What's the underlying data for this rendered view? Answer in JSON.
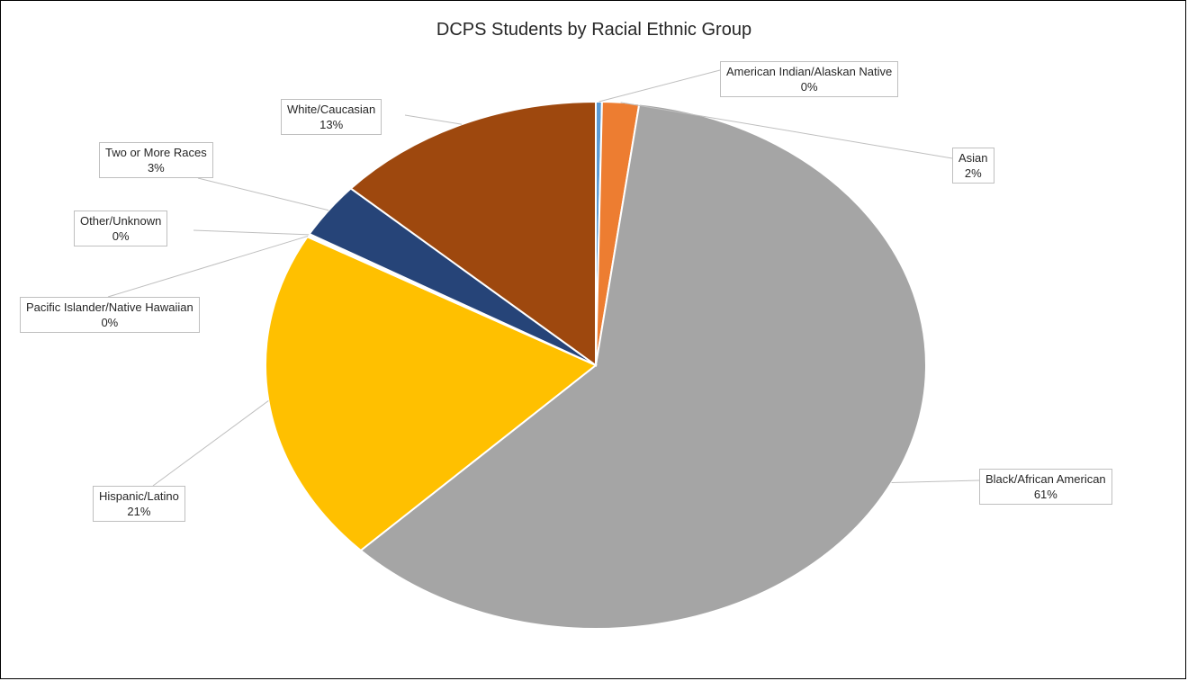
{
  "chart_data": {
    "type": "pie",
    "title": "DCPS Students by Racial Ethnic Group",
    "slices": [
      {
        "name": "American Indian/Alaskan Native",
        "value": 0.3,
        "label": "0%",
        "color": "#5b9bd5"
      },
      {
        "name": "Asian",
        "value": 1.8,
        "label": "2%",
        "color": "#ed7d31"
      },
      {
        "name": "Black/African American",
        "value": 60.5,
        "label": "61%",
        "color": "#a5a5a5"
      },
      {
        "name": "Hispanic/Latino",
        "value": 20.5,
        "label": "21%",
        "color": "#ffc000"
      },
      {
        "name": "Pacific Islander/Native Hawaiian",
        "value": 0.1,
        "label": "0%",
        "color": "#4472c4"
      },
      {
        "name": "Other/Unknown",
        "value": 0.1,
        "label": "0%",
        "color": "#70ad47"
      },
      {
        "name": "Two or More Races",
        "value": 3.4,
        "label": "3%",
        "color": "#264478"
      },
      {
        "name": "White/Caucasian",
        "value": 13.3,
        "label": "13%",
        "color": "#9e480e"
      }
    ]
  }
}
